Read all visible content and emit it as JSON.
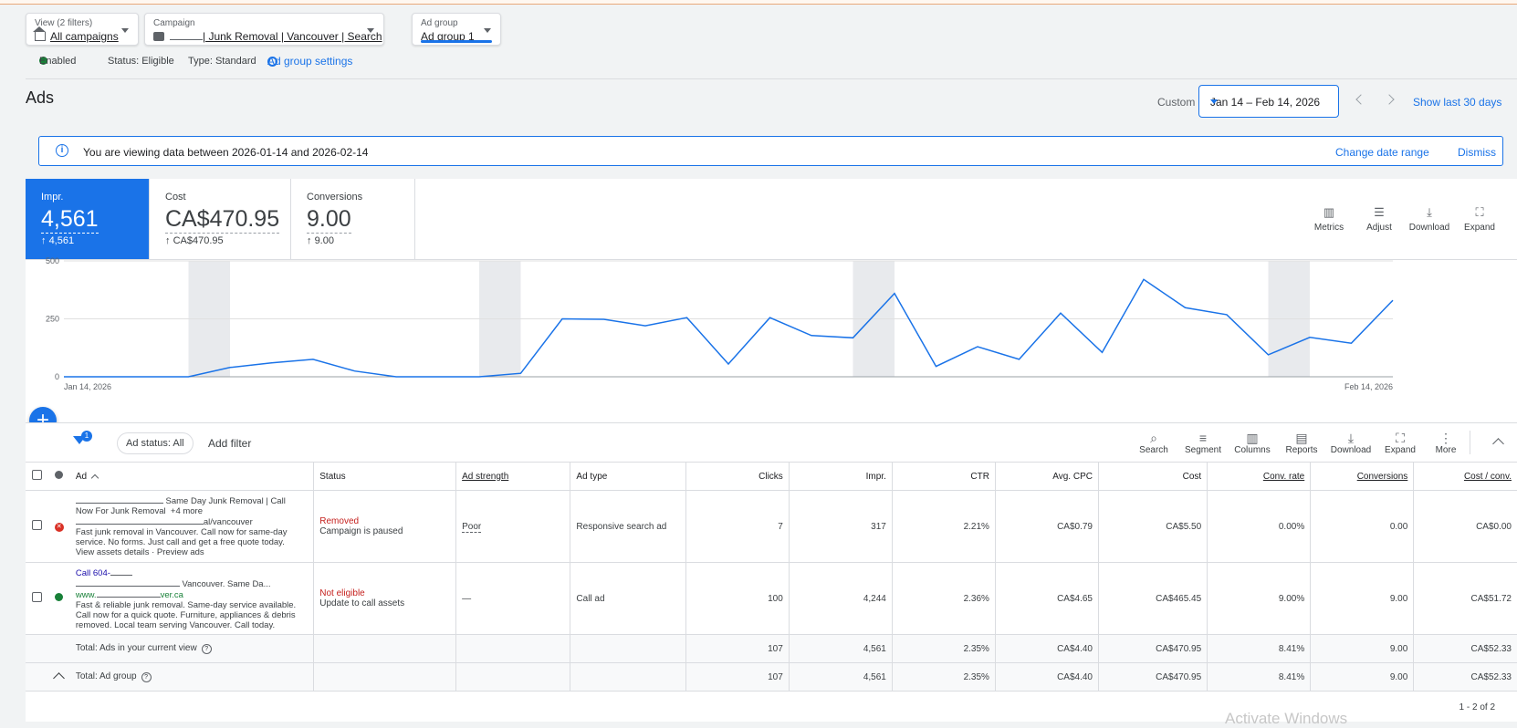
{
  "filters": {
    "view": {
      "label": "View (2 filters)",
      "value": "All campaigns"
    },
    "campaign": {
      "label": "Campaign",
      "value_suffix": "| Junk Removal | Vancouver | Search"
    },
    "adgroup": {
      "label": "Ad group",
      "value": "Ad group 1"
    }
  },
  "status_row": {
    "enabled": "Enabled",
    "status": "Status: Eligible",
    "type": "Type: Standard",
    "settings_link": "Ad group settings"
  },
  "page": {
    "title": "Ads",
    "custom_label": "Custom",
    "date_range": "Jan 14 – Feb 14, 2026",
    "show_last": "Show last 30 days"
  },
  "banner": {
    "text": "You are viewing data between 2026-01-14 and 2026-02-14",
    "change": "Change date range",
    "dismiss": "Dismiss"
  },
  "scorecards": [
    {
      "name": "Impr.",
      "value": "4,561",
      "delta": "4,561",
      "active": true
    },
    {
      "name": "Cost",
      "value": "CA$470.95",
      "delta": "CA$470.95",
      "active": false
    },
    {
      "name": "Conversions",
      "value": "9.00",
      "delta": "9.00",
      "active": false
    }
  ],
  "chart_tools": [
    "Metrics",
    "Adjust",
    "Download",
    "Expand"
  ],
  "chart_data": {
    "type": "line",
    "series": [
      {
        "values": [
          0,
          0,
          0,
          0,
          40,
          60,
          75,
          25,
          0,
          0,
          0,
          15,
          250,
          248,
          220,
          255,
          55,
          255,
          178,
          168,
          360,
          45,
          130,
          75,
          275,
          105,
          420,
          298,
          268,
          95,
          170,
          145,
          330
        ]
      }
    ],
    "y_ticks": [
      0,
      250,
      500
    ],
    "ylim": [
      0,
      500
    ],
    "x_start_label": "Jan 14, 2026",
    "x_end_label": "Feb 14, 2026",
    "weekend_bands": [
      [
        6,
        8
      ],
      [
        20,
        22
      ],
      [
        38,
        40
      ],
      [
        58,
        60
      ]
    ],
    "color": "#1a73e8",
    "grid": true
  },
  "table_toolbar": {
    "filter_badge": "1",
    "chip": "Ad status: All",
    "add_filter": "Add filter",
    "tools": [
      "Search",
      "Segment",
      "Columns",
      "Reports",
      "Download",
      "Expand",
      "More"
    ]
  },
  "columns": [
    "Ad",
    "Status",
    "Ad strength",
    "Ad type",
    "Clicks",
    "Impr.",
    "CTR",
    "Avg. CPC",
    "Cost",
    "Conv. rate",
    "Conversions",
    "Cost / conv."
  ],
  "rows": [
    {
      "ad_line1": "Same Day Junk Removal | Call",
      "ad_line2": "Now For Junk Removal",
      "ad_more": "+4 more",
      "ad_url": "al/vancouver",
      "ad_desc1": "Fast junk removal in Vancouver. Call now for same-day",
      "ad_desc2": "service. No forms. Just call and get a free quote today.",
      "ad_links": "View assets details · Preview ads",
      "status": "Removed",
      "status_sub": "Campaign is paused",
      "strength": "Poor",
      "type": "Responsive search ad",
      "clicks": "7",
      "impr": "317",
      "ctr": "2.21%",
      "cpc": "CA$0.79",
      "cost": "CA$5.50",
      "conv_rate": "0.00%",
      "conversions": "0.00",
      "cost_conv": "CA$0.00"
    },
    {
      "ad_line1": "Call 604-",
      "ad_line2": "Vancouver. Same Da...",
      "ad_url": "ver.ca",
      "ad_url_prefix": "www.",
      "ad_desc1": "Fast & reliable junk removal. Same-day service available.",
      "ad_desc2": "Call now for a quick quote. Furniture, appliances & debris",
      "ad_desc3": "removed. Local team serving Vancouver. Call today.",
      "status": "Not eligible",
      "status_sub": "Update to call assets",
      "strength": "—",
      "type": "Call ad",
      "clicks": "100",
      "impr": "4,244",
      "ctr": "2.36%",
      "cpc": "CA$4.65",
      "cost": "CA$465.45",
      "conv_rate": "9.00%",
      "conversions": "9.00",
      "cost_conv": "CA$51.72"
    }
  ],
  "totals": [
    {
      "label": "Total: Ads in your current view",
      "clicks": "107",
      "impr": "4,561",
      "ctr": "2.35%",
      "cpc": "CA$4.40",
      "cost": "CA$470.95",
      "conv_rate": "8.41%",
      "conversions": "9.00",
      "cost_conv": "CA$52.33"
    },
    {
      "label": "Total: Ad group",
      "clicks": "107",
      "impr": "4,561",
      "ctr": "2.35%",
      "cpc": "CA$4.40",
      "cost": "CA$470.95",
      "conv_rate": "8.41%",
      "conversions": "9.00",
      "cost_conv": "CA$52.33"
    }
  ],
  "pager": "1 - 2 of 2",
  "watermark": "Activate Windows"
}
